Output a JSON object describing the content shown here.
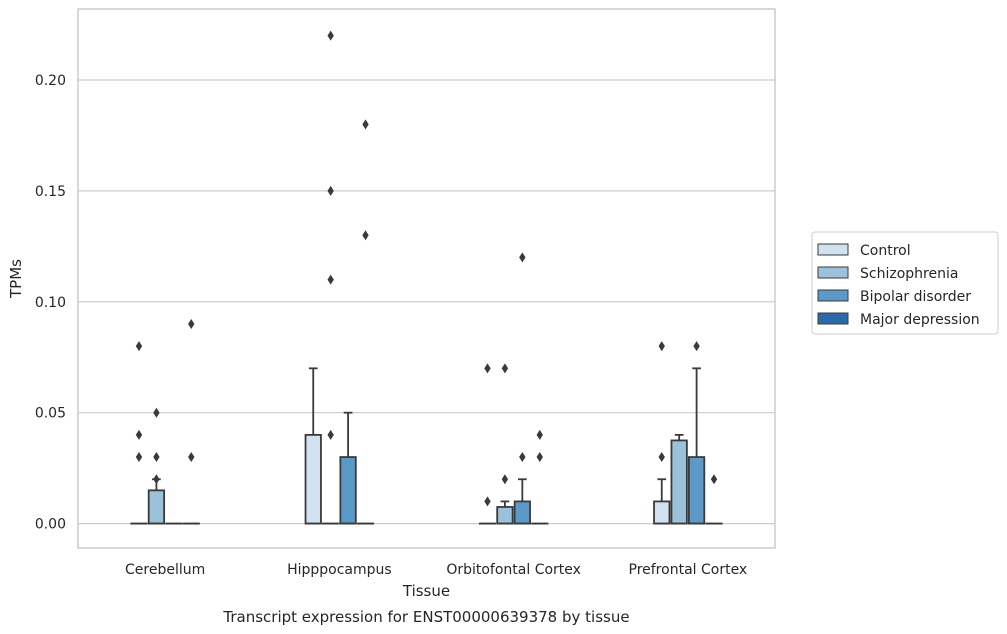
{
  "chart_data": {
    "type": "box",
    "title": "Transcript expression for ENST00000639378 by tissue",
    "xlabel": "Tissue",
    "ylabel": "TPMs",
    "ylim": [
      -0.011,
      0.232
    ],
    "yticks": [
      "0.00",
      "0.05",
      "0.10",
      "0.15",
      "0.20"
    ],
    "grid": "horizontal",
    "legend_position": "right",
    "categories": [
      "Cerebellum",
      "Hipppocampus",
      "Orbitofontal Cortex",
      "Prefrontal Cortex"
    ],
    "series": [
      {
        "name": "Control",
        "color": "#d1e1f0",
        "boxes": [
          {
            "q1": 0,
            "median": 0,
            "q3": 0,
            "whisker_low": 0,
            "whisker_high": 0,
            "outliers": [
              0.03,
              0.04,
              0.08
            ]
          },
          {
            "q1": 0,
            "median": 0,
            "q3": 0.04,
            "whisker_low": 0,
            "whisker_high": 0.07,
            "outliers": []
          },
          {
            "q1": 0,
            "median": 0,
            "q3": 0,
            "whisker_low": 0,
            "whisker_high": 0,
            "outliers": [
              0.01,
              0.07
            ]
          },
          {
            "q1": 0,
            "median": 0,
            "q3": 0.01,
            "whisker_low": 0,
            "whisker_high": 0.02,
            "outliers": [
              0.03,
              0.08
            ]
          }
        ]
      },
      {
        "name": "Schizophrenia",
        "color": "#9cc2db",
        "boxes": [
          {
            "q1": 0,
            "median": 0,
            "q3": 0.015,
            "whisker_low": 0,
            "whisker_high": 0.02,
            "outliers": [
              0.02,
              0.03,
              0.05
            ]
          },
          {
            "q1": 0,
            "median": 0,
            "q3": 0,
            "whisker_low": 0,
            "whisker_high": 0,
            "outliers": [
              0.04,
              0.11,
              0.15,
              0.22
            ]
          },
          {
            "q1": 0,
            "median": 0,
            "q3": 0.0075,
            "whisker_low": 0,
            "whisker_high": 0.01,
            "outliers": [
              0.02,
              0.07
            ]
          },
          {
            "q1": 0,
            "median": 0,
            "q3": 0.0375,
            "whisker_low": 0,
            "whisker_high": 0.04,
            "outliers": []
          }
        ]
      },
      {
        "name": "Bipolar disorder",
        "color": "#5b9ac8",
        "boxes": [
          {
            "q1": 0,
            "median": 0,
            "q3": 0,
            "whisker_low": 0,
            "whisker_high": 0,
            "outliers": []
          },
          {
            "q1": 0,
            "median": 0,
            "q3": 0.03,
            "whisker_low": 0,
            "whisker_high": 0.05,
            "outliers": []
          },
          {
            "q1": 0,
            "median": 0,
            "q3": 0.01,
            "whisker_low": 0,
            "whisker_high": 0.02,
            "outliers": [
              0.03,
              0.12
            ]
          },
          {
            "q1": 0,
            "median": 0,
            "q3": 0.03,
            "whisker_low": 0,
            "whisker_high": 0.07,
            "outliers": [
              0.08
            ]
          }
        ]
      },
      {
        "name": "Major depression",
        "color": "#2a6aa8",
        "boxes": [
          {
            "q1": 0,
            "median": 0,
            "q3": 0,
            "whisker_low": 0,
            "whisker_high": 0,
            "outliers": [
              0.03,
              0.09
            ]
          },
          {
            "q1": 0,
            "median": 0,
            "q3": 0,
            "whisker_low": 0,
            "whisker_high": 0,
            "outliers": [
              0.13,
              0.18
            ]
          },
          {
            "q1": 0,
            "median": 0,
            "q3": 0,
            "whisker_low": 0,
            "whisker_high": 0,
            "outliers": [
              0.03,
              0.04
            ]
          },
          {
            "q1": 0,
            "median": 0,
            "q3": 0,
            "whisker_low": 0,
            "whisker_high": 0,
            "outliers": [
              0.02
            ]
          }
        ]
      }
    ]
  }
}
